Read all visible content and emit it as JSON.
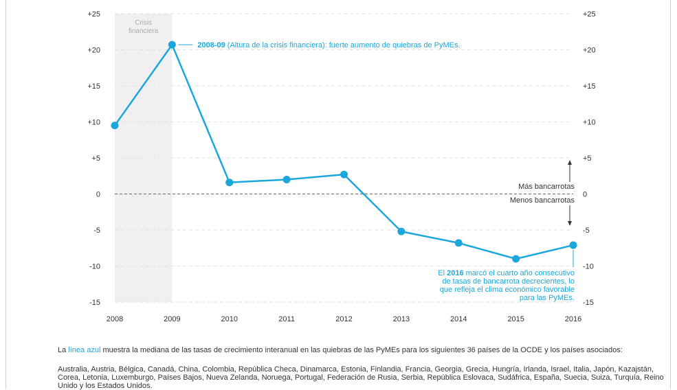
{
  "chart_data": {
    "type": "line",
    "x": [
      "2008",
      "2009",
      "2010",
      "2011",
      "2012",
      "2013",
      "2014",
      "2015",
      "2016"
    ],
    "values": [
      9.5,
      20.7,
      1.6,
      2.0,
      2.7,
      -5.2,
      -6.8,
      -9.0,
      -7.1
    ],
    "ylim": [
      -15,
      25
    ],
    "yticks": [
      "+25",
      "+20",
      "+15",
      "+10",
      "+5",
      "0",
      "-5",
      "-10",
      "-15"
    ],
    "grid": true,
    "line_color": "#1ba7db",
    "shaded_region": {
      "from": "2008",
      "to": "2009",
      "label_lines": [
        "Crisis",
        "financiera"
      ],
      "color": "#f0f0f0"
    },
    "annotations": {
      "crisis": {
        "bold": "2008-09",
        "text": " (Altura de la crisis financiera): fuerte aumento de quiebras de PyMEs."
      },
      "end": {
        "line1_prefix": "El ",
        "line1_bold": "2016",
        "line1_suffix": " marcó el cuarto año consecutivo",
        "line2": "de tasas de bancarrota decrecientes, lo",
        "line3": "que refleja el clima económico favorable",
        "line4": "para las PyMEs."
      }
    },
    "direction_labels": {
      "up": "Más bancarrotas",
      "down": "Menos bancarrotas"
    }
  },
  "footer": {
    "desc_prefix": "La ",
    "desc_link": "línea azul",
    "desc_rest": " muestra la mediana de las tasas de crecimiento interanual en las quiebras de las PyMEs para los siguientes 36 países de la OCDE y los países asociados:",
    "countries": "Australia, Austria, Bélgica, Canadá, China, Colombia, República Checa, Dinamarca, Estonia, Finlandia, Francia, Georgia, Grecia, Hungría, Irlanda, Israel, Italia, Japón, Kazajstán, Corea, Letonia, Luxemburgo, Países Bajos, Nueva Zelanda, Noruega, Portugal, Federación de Rusia, Serbia, República Eslovaca, Sudáfrica, España, Suecia, Suiza, Turquía, Reino Unido y los Estados Unidos."
  }
}
